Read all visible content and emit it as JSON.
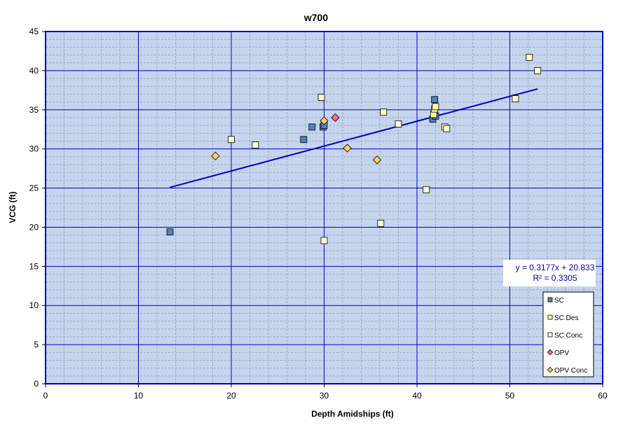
{
  "chart_data": {
    "type": "scatter",
    "title": "w700",
    "xlabel": "Depth Amidships  (ft)",
    "ylabel": "VCG (ft)",
    "xlim": [
      0,
      60
    ],
    "ylim": [
      0,
      45
    ],
    "xticks": [
      0,
      10,
      20,
      30,
      40,
      50,
      60
    ],
    "yticks": [
      0,
      5,
      10,
      15,
      20,
      25,
      30,
      35,
      40,
      45
    ],
    "grid": true,
    "legend_position": "bottom-right",
    "series": [
      {
        "name": "SC",
        "marker": "square",
        "color": "#4f81bd",
        "points": [
          [
            13.4,
            19.4
          ],
          [
            27.8,
            31.2
          ],
          [
            28.7,
            32.8
          ],
          [
            29.9,
            32.8
          ],
          [
            30.0,
            33.0
          ],
          [
            41.7,
            33.8
          ],
          [
            42.0,
            34.2
          ],
          [
            41.9,
            36.3
          ]
        ]
      },
      {
        "name": "SC Des",
        "marker": "square",
        "color": "#ffff99",
        "points": [
          [
            41.8,
            34.4
          ],
          [
            41.9,
            35.1
          ],
          [
            42.0,
            35.4
          ]
        ]
      },
      {
        "name": "SC Conc",
        "marker": "square",
        "color": "#ffffcc",
        "points": [
          [
            20.0,
            31.2
          ],
          [
            22.6,
            30.5
          ],
          [
            29.7,
            36.6
          ],
          [
            30.0,
            18.3
          ],
          [
            36.1,
            20.5
          ],
          [
            36.4,
            34.7
          ],
          [
            38.0,
            33.2
          ],
          [
            41.0,
            24.8
          ],
          [
            43.0,
            32.8
          ],
          [
            43.2,
            32.6
          ],
          [
            50.6,
            36.4
          ],
          [
            52.1,
            41.7
          ],
          [
            53.0,
            40.0
          ]
        ]
      },
      {
        "name": "OPV",
        "marker": "diamond",
        "color": "#ff6699",
        "points": [
          [
            31.2,
            34.0
          ]
        ]
      },
      {
        "name": "OPV Conc",
        "marker": "diamond",
        "color": "#ffcc66",
        "points": [
          [
            18.3,
            29.1
          ],
          [
            30.0,
            33.6
          ],
          [
            32.5,
            30.1
          ],
          [
            35.7,
            28.6
          ]
        ]
      }
    ],
    "trendline": {
      "slope": 0.3177,
      "intercept": 20.833,
      "x_range": [
        13.4,
        53.0
      ],
      "color": "#0000cc",
      "equation_text": "y = 0.3177x + 20.833",
      "r2_text": "R² = 0.3305"
    },
    "colors": {
      "plot_background": "#c5d5ee",
      "major_grid": "#0000cc",
      "minor_grid": "#9aa8c0",
      "border": "#0000cc"
    }
  }
}
